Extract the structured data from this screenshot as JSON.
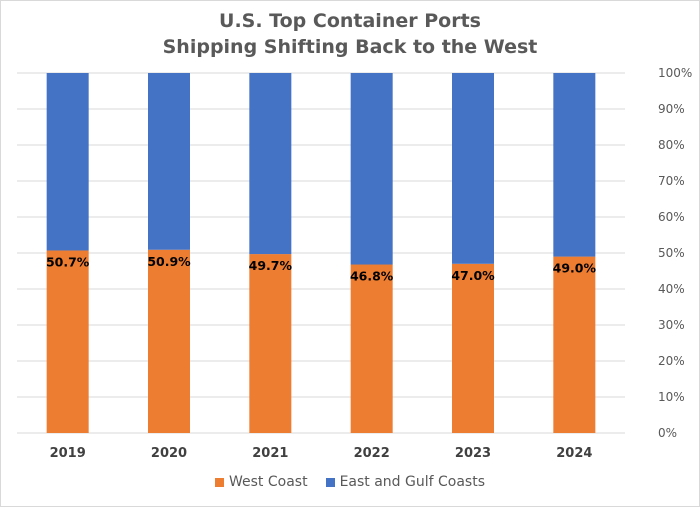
{
  "chart_data": {
    "type": "bar",
    "stacked": true,
    "title": "U.S. Top Container Ports",
    "subtitle": "Shipping Shifting Back to the West",
    "categories": [
      "2019",
      "2020",
      "2021",
      "2022",
      "2023",
      "2024"
    ],
    "series": [
      {
        "name": "West Coast",
        "color": "#ED7D31",
        "values": [
          50.7,
          50.9,
          49.7,
          46.8,
          47.0,
          49.0
        ]
      },
      {
        "name": "East and Gulf Coasts",
        "color": "#4472C4",
        "values": [
          49.3,
          49.1,
          50.3,
          53.2,
          53.0,
          51.0
        ]
      }
    ],
    "data_labels": [
      "50.7%",
      "50.9%",
      "49.7%",
      "46.8%",
      "47.0%",
      "49.0%"
    ],
    "y_axis": {
      "position": "right",
      "range": [
        0,
        100
      ],
      "ticks": [
        "0%",
        "10%",
        "20%",
        "30%",
        "40%",
        "50%",
        "60%",
        "70%",
        "80%",
        "90%",
        "100%"
      ]
    },
    "xlabel": "",
    "ylabel": "",
    "grid": true,
    "legend_position": "bottom"
  }
}
